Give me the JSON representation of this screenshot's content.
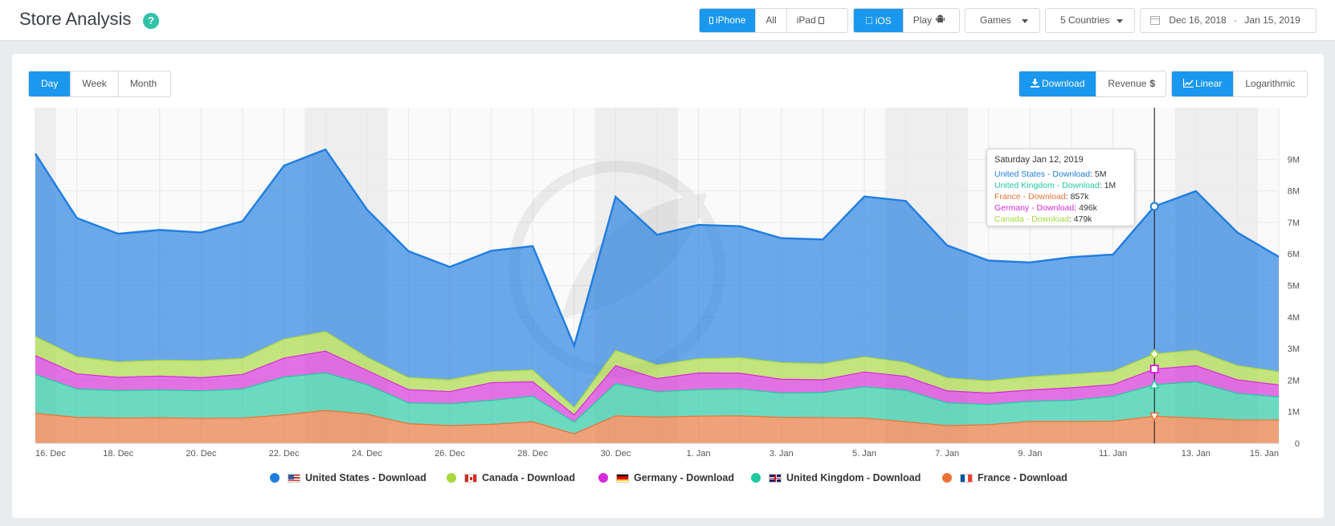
{
  "header": {
    "title": "Store Analysis",
    "help_badge": "?",
    "device": {
      "iphone": "iPhone",
      "all": "All",
      "ipad": "iPad"
    },
    "platform": {
      "ios": "iOS",
      "play": "Play"
    },
    "category": "Games",
    "countries": "5 Countries",
    "date_start": "Dec 16, 2018",
    "date_sep": "-",
    "date_end": "Jan 15, 2019"
  },
  "toolbar": {
    "granularity": {
      "day": "Day",
      "week": "Week",
      "month": "Month"
    },
    "metric": {
      "download": "Download",
      "revenue": "Revenue"
    },
    "scale": {
      "linear": "Linear",
      "log": "Logarithmic"
    }
  },
  "tooltip": {
    "title": "Saturday Jan 12, 2019",
    "rows": [
      {
        "label": "United States - Download",
        "value": "5M",
        "color": "#1f7de0"
      },
      {
        "label": "United Kingdom - Download",
        "value": "1M",
        "color": "#1ec9a2"
      },
      {
        "label": "France - Download",
        "value": "857k",
        "color": "#ea7234"
      },
      {
        "label": "Germany - Download",
        "value": "496k",
        "color": "#d62ad8"
      },
      {
        "label": "Canada - Download",
        "value": "479k",
        "color": "#a7d83c"
      }
    ]
  },
  "legend": [
    {
      "label": "United States - Download",
      "color": "#1f7de0",
      "flag": "us"
    },
    {
      "label": "Canada - Download",
      "color": "#a7d83c",
      "flag": "ca"
    },
    {
      "label": "Germany - Download",
      "color": "#d62ad8",
      "flag": "de"
    },
    {
      "label": "United Kingdom - Download",
      "color": "#1ec9a2",
      "flag": "uk"
    },
    {
      "label": "France - Download",
      "color": "#ea7234",
      "flag": "fr"
    }
  ],
  "chart_data": {
    "type": "area",
    "stacked": true,
    "x": [
      "16. Dec",
      "17. Dec",
      "18. Dec",
      "19. Dec",
      "20. Dec",
      "21. Dec",
      "22. Dec",
      "23. Dec",
      "24. Dec",
      "25. Dec",
      "26. Dec",
      "27. Dec",
      "28. Dec",
      "29. Dec",
      "30. Dec",
      "31. Dec",
      "1. Jan",
      "2. Jan",
      "3. Jan",
      "4. Jan",
      "5. Jan",
      "6. Jan",
      "7. Jan",
      "8. Jan",
      "9. Jan",
      "10. Jan",
      "11. Jan",
      "12. Jan",
      "13. Jan",
      "14. Jan",
      "15. Jan"
    ],
    "x_tick_labels": [
      "16. Dec",
      "18. Dec",
      "20. Dec",
      "22. Dec",
      "24. Dec",
      "26. Dec",
      "28. Dec",
      "30. Dec",
      "1. Jan",
      "3. Jan",
      "5. Jan",
      "7. Jan",
      "9. Jan",
      "11. Jan",
      "13. Jan",
      "15. Jan"
    ],
    "y_tick_labels": [
      "0",
      "1M",
      "2M",
      "3M",
      "4M",
      "5M",
      "6M",
      "7M",
      "8M",
      "9M"
    ],
    "ylim": [
      0,
      10000000
    ],
    "weekend_bands": [
      [
        0,
        0.5
      ],
      [
        6.5,
        8.5
      ],
      [
        13.5,
        15.5
      ],
      [
        20.5,
        22.5
      ],
      [
        27.5,
        29.5
      ]
    ],
    "highlight_index": 27,
    "series": [
      {
        "name": "France - Download",
        "color": "#ea7234",
        "values": [
          950000,
          820000,
          800000,
          810000,
          790000,
          800000,
          900000,
          1040000,
          920000,
          620000,
          560000,
          600000,
          680000,
          300000,
          870000,
          830000,
          860000,
          870000,
          820000,
          810000,
          800000,
          680000,
          560000,
          590000,
          690000,
          690000,
          700000,
          857000,
          800000,
          740000,
          740000
        ]
      },
      {
        "name": "United Kingdom - Download",
        "color": "#1ec9a2",
        "values": [
          1230000,
          900000,
          870000,
          880000,
          870000,
          920000,
          1200000,
          1190000,
          940000,
          660000,
          690000,
          760000,
          810000,
          370000,
          1020000,
          800000,
          840000,
          850000,
          770000,
          800000,
          990000,
          1000000,
          720000,
          640000,
          640000,
          670000,
          790000,
          1000000,
          1150000,
          840000,
          730000
        ]
      },
      {
        "name": "Germany - Download",
        "color": "#d62ad8",
        "values": [
          600000,
          480000,
          420000,
          440000,
          420000,
          460000,
          600000,
          690000,
          450000,
          420000,
          390000,
          560000,
          460000,
          230000,
          570000,
          420000,
          530000,
          500000,
          440000,
          400000,
          470000,
          440000,
          380000,
          360000,
          360000,
          400000,
          370000,
          496000,
          510000,
          430000,
          380000
        ]
      },
      {
        "name": "Canada - Download",
        "color": "#a7d83c",
        "values": [
          600000,
          540000,
          490000,
          500000,
          540000,
          510000,
          600000,
          620000,
          420000,
          380000,
          370000,
          350000,
          370000,
          230000,
          480000,
          430000,
          450000,
          490000,
          530000,
          510000,
          480000,
          440000,
          410000,
          390000,
          420000,
          430000,
          420000,
          479000,
          490000,
          450000,
          420000
        ]
      },
      {
        "name": "United States - Download",
        "color": "#1f7de0",
        "values": [
          5800000,
          4400000,
          4060000,
          4130000,
          4060000,
          4350000,
          5500000,
          5770000,
          4680000,
          4010000,
          3580000,
          3830000,
          3930000,
          1960000,
          4870000,
          4130000,
          4240000,
          4170000,
          3940000,
          3940000,
          5080000,
          5120000,
          4200000,
          3810000,
          3620000,
          3710000,
          3700000,
          4676000,
          5040000,
          4220000,
          3640000
        ]
      }
    ]
  }
}
